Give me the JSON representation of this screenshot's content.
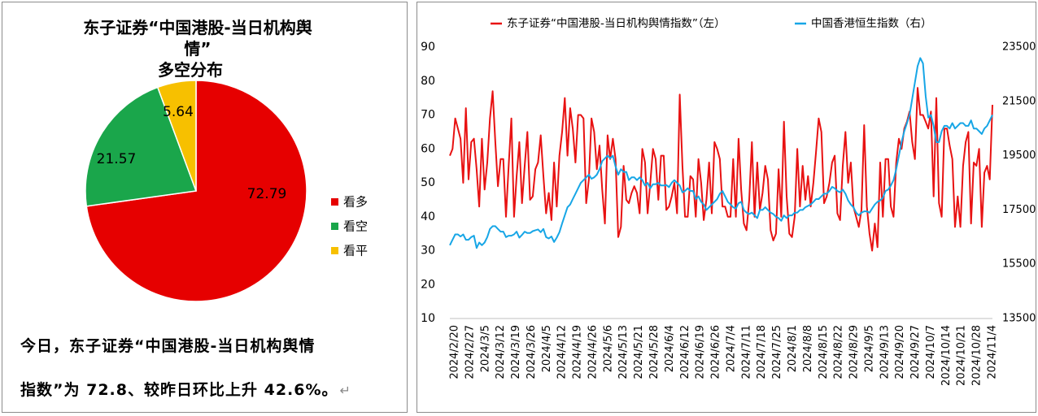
{
  "chart_data": [
    {
      "type": "pie",
      "title": "东子证券“中国港股-当日机构舆情”多空分布",
      "title_lines": [
        "东子证券“中国港股-当日机构舆",
        "情”",
        "多空分布"
      ],
      "categories": [
        "看多",
        "看空",
        "看平"
      ],
      "values": [
        72.79,
        21.57,
        5.64
      ],
      "labels": [
        "72.79",
        "21.57",
        "5.64"
      ],
      "colors": [
        "#e60000",
        "#1aa64b",
        "#f7c000"
      ],
      "legend_position": "right"
    },
    {
      "type": "line",
      "title": "",
      "series": [
        {
          "name": "东子证券“中国港股-当日机构舆情指数”（左）",
          "axis": "left",
          "color": "#e81212",
          "values": [
            58,
            60,
            69,
            66,
            63,
            50,
            72,
            51,
            62,
            63,
            54,
            43,
            63,
            48,
            56,
            69,
            77,
            62,
            49,
            57,
            57,
            40,
            55,
            69,
            40,
            52,
            62,
            44,
            55,
            65,
            45,
            46,
            54,
            56,
            64,
            52,
            41,
            47,
            39,
            56,
            43,
            58,
            65,
            75,
            58,
            72,
            66,
            56,
            70,
            70,
            69,
            44,
            51,
            69,
            65,
            54,
            61,
            48,
            38,
            64,
            57,
            63,
            57,
            34,
            37,
            55,
            45,
            44,
            47,
            49,
            47,
            41,
            60,
            56,
            41,
            50,
            60,
            57,
            45,
            58,
            58,
            42,
            43,
            46,
            50,
            41,
            76,
            55,
            40,
            40,
            52,
            51,
            40,
            57,
            50,
            39,
            45,
            56,
            41,
            62,
            60,
            57,
            43,
            43,
            40,
            40,
            57,
            40,
            63,
            48,
            38,
            36,
            45,
            62,
            40,
            56,
            42,
            47,
            55,
            51,
            36,
            33,
            35,
            54,
            40,
            68,
            46,
            35,
            34,
            40,
            60,
            43,
            55,
            45,
            52,
            43,
            50,
            59,
            69,
            65,
            44,
            46,
            50,
            56,
            58,
            41,
            39,
            55,
            65,
            50,
            56,
            43,
            40,
            37,
            42,
            67,
            43,
            35,
            30,
            38,
            31,
            56,
            40,
            57,
            57,
            43,
            40,
            56,
            63,
            60,
            66,
            68,
            71,
            62,
            57,
            78,
            70,
            70,
            68,
            66,
            71,
            46,
            75,
            44,
            40,
            66,
            66,
            61,
            57,
            37,
            46,
            37,
            55,
            62,
            65,
            38,
            56,
            55,
            60,
            37,
            53,
            55,
            51,
            73
          ],
          "first_value": 58.4,
          "last_value": 72.8
        },
        {
          "name": "中国香港恒生指数（右）",
          "axis": "right",
          "color": "#17a6e6",
          "values": [
            16200,
            16400,
            16600,
            16600,
            16520,
            16600,
            16400,
            16400,
            16500,
            16550,
            16100,
            16300,
            16200,
            16300,
            16500,
            16800,
            16900,
            16900,
            16800,
            16700,
            16700,
            16500,
            16550,
            16550,
            16600,
            16700,
            16480,
            16580,
            16700,
            16650,
            16650,
            16720,
            16750,
            16780,
            16680,
            16800,
            16500,
            16450,
            16520,
            16320,
            16480,
            16680,
            17000,
            17300,
            17600,
            17700,
            17900,
            18100,
            18300,
            18500,
            18600,
            18700,
            18800,
            18650,
            18700,
            18800,
            19000,
            19300,
            19400,
            19500,
            19400,
            19500,
            19100,
            18800,
            19000,
            18900,
            18900,
            18600,
            18700,
            18700,
            18600,
            18700,
            18600,
            18400,
            18500,
            18300,
            18450,
            18450,
            18500,
            18400,
            18400,
            18420,
            18340,
            18500,
            18600,
            18500,
            18400,
            18150,
            18200,
            18300,
            18200,
            18200,
            17900,
            18000,
            17800,
            17700,
            17500,
            17600,
            17700,
            17800,
            17900,
            18100,
            18200,
            18000,
            17800,
            17700,
            17600,
            17550,
            17750,
            17800,
            17500,
            17400,
            17350,
            17400,
            17300,
            17200,
            17500,
            17500,
            17600,
            17500,
            17400,
            17350,
            17250,
            17200,
            17100,
            17300,
            17200,
            17300,
            17300,
            17400,
            17400,
            17500,
            17500,
            17600,
            17650,
            17700,
            17800,
            17900,
            17900,
            18000,
            18100,
            18100,
            18200,
            18350,
            18300,
            18200,
            18150,
            18250,
            18100,
            17850,
            17700,
            17600,
            17400,
            17300,
            17400,
            17450,
            17450,
            17400,
            17550,
            17700,
            17800,
            17850,
            17950,
            18200,
            18250,
            18400,
            18600,
            19000,
            19500,
            20000,
            20400,
            20700,
            21000,
            21600,
            22200,
            22800,
            23100,
            22900,
            21700,
            20900,
            21000,
            20600,
            20000,
            20000,
            20400,
            20600,
            20600,
            20500,
            20700,
            20500,
            20600,
            20700,
            20700,
            20600,
            20600,
            20800,
            20500,
            20500,
            20400,
            20300,
            20500,
            20600,
            20800,
            21000
          ],
          "last_value": 21000
        }
      ],
      "x_tick_labels": [
        "2024/2/20",
        "2024/2/27",
        "2024/3/5",
        "2024/3/12",
        "2024/3/19",
        "2024/3/26",
        "2024/4/5",
        "2024/4/12",
        "2024/4/19",
        "2024/4/26",
        "2024/5/6",
        "2024/5/13",
        "2024/5/21",
        "2024/5/28",
        "2024/6/4",
        "2024/6/12",
        "2024/6/19",
        "2024/6/26",
        "2024/7/4",
        "2024/7/11",
        "2024/7/18",
        "2024/7/25",
        "2024/8/1",
        "2024/8/8",
        "2024/8/15",
        "2024/8/22",
        "2024/8/29",
        "2024/9/5",
        "2024/9/13",
        "2024/9/20",
        "2024/9/27",
        "2024/10/7",
        "2024/10/14",
        "2024/10/21",
        "2024/10/28",
        "2024/11/4"
      ],
      "y_left": {
        "min": 10,
        "max": 90,
        "ticks": [
          10,
          20,
          30,
          40,
          50,
          60,
          70,
          80,
          90
        ]
      },
      "y_right": {
        "min": 13500,
        "max": 23500,
        "ticks": [
          13500,
          15500,
          17500,
          19500,
          21500,
          23500
        ]
      },
      "grid": false,
      "legend_position": "top"
    }
  ],
  "note": {
    "line1": "今日，东子证券“中国港股-当日机构舆情",
    "line2": "指数”为 72.8、较昨日环比上升 42.6%。",
    "return_mark": "↵"
  }
}
